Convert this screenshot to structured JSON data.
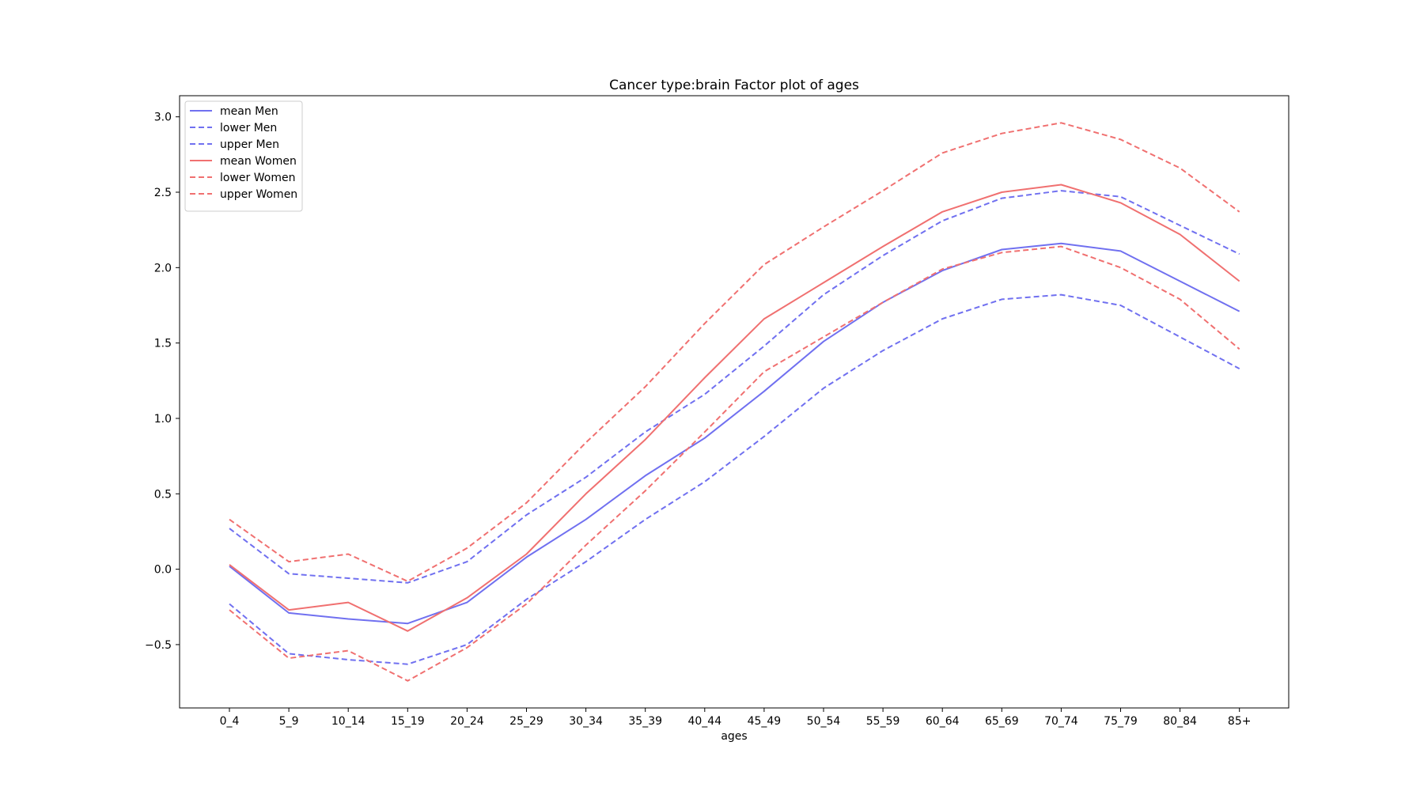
{
  "chart_data": {
    "type": "line",
    "title": "Cancer type:brain Factor plot of ages",
    "xlabel": "ages",
    "ylabel": "",
    "categories": [
      "0_4",
      "5_9",
      "10_14",
      "15_19",
      "20_24",
      "25_29",
      "30_34",
      "35_39",
      "40_44",
      "45_49",
      "50_54",
      "55_59",
      "60_64",
      "65_69",
      "70_74",
      "75_79",
      "80_84",
      "85+"
    ],
    "ylim": [
      -0.92,
      3.14
    ],
    "yticks": [
      "-0.5",
      "0.0",
      "0.5",
      "1.0",
      "1.5",
      "2.0",
      "2.5",
      "3.0"
    ],
    "grid": false,
    "legend_position": "top-left",
    "series": [
      {
        "name": "mean Men",
        "color": "#7070f0",
        "dashed": false,
        "values": [
          0.02,
          -0.29,
          -0.33,
          -0.36,
          -0.22,
          0.08,
          0.33,
          0.62,
          0.87,
          1.18,
          1.51,
          1.77,
          1.98,
          2.12,
          2.16,
          2.11,
          1.91,
          1.71
        ]
      },
      {
        "name": "lower Men",
        "color": "#7070f0",
        "dashed": true,
        "values": [
          -0.23,
          -0.56,
          -0.6,
          -0.63,
          -0.5,
          -0.2,
          0.05,
          0.33,
          0.58,
          0.88,
          1.2,
          1.45,
          1.66,
          1.79,
          1.82,
          1.75,
          1.54,
          1.33
        ]
      },
      {
        "name": "upper Men",
        "color": "#7070f0",
        "dashed": true,
        "values": [
          0.27,
          -0.03,
          -0.06,
          -0.09,
          0.05,
          0.36,
          0.61,
          0.91,
          1.16,
          1.48,
          1.82,
          2.08,
          2.31,
          2.46,
          2.51,
          2.47,
          2.28,
          2.09
        ]
      },
      {
        "name": "mean Women",
        "color": "#f07070",
        "dashed": false,
        "values": [
          0.03,
          -0.27,
          -0.22,
          -0.41,
          -0.19,
          0.1,
          0.5,
          0.86,
          1.27,
          1.66,
          1.9,
          2.14,
          2.37,
          2.5,
          2.55,
          2.43,
          2.22,
          1.91
        ]
      },
      {
        "name": "lower Women",
        "color": "#f07070",
        "dashed": true,
        "values": [
          -0.27,
          -0.59,
          -0.54,
          -0.74,
          -0.52,
          -0.23,
          0.16,
          0.52,
          0.91,
          1.31,
          1.54,
          1.77,
          1.99,
          2.1,
          2.14,
          2.0,
          1.79,
          1.46
        ]
      },
      {
        "name": "upper Women",
        "color": "#f07070",
        "dashed": true,
        "values": [
          0.33,
          0.05,
          0.1,
          -0.08,
          0.14,
          0.44,
          0.84,
          1.21,
          1.63,
          2.02,
          2.27,
          2.51,
          2.76,
          2.89,
          2.96,
          2.85,
          2.66,
          2.37
        ]
      }
    ]
  }
}
